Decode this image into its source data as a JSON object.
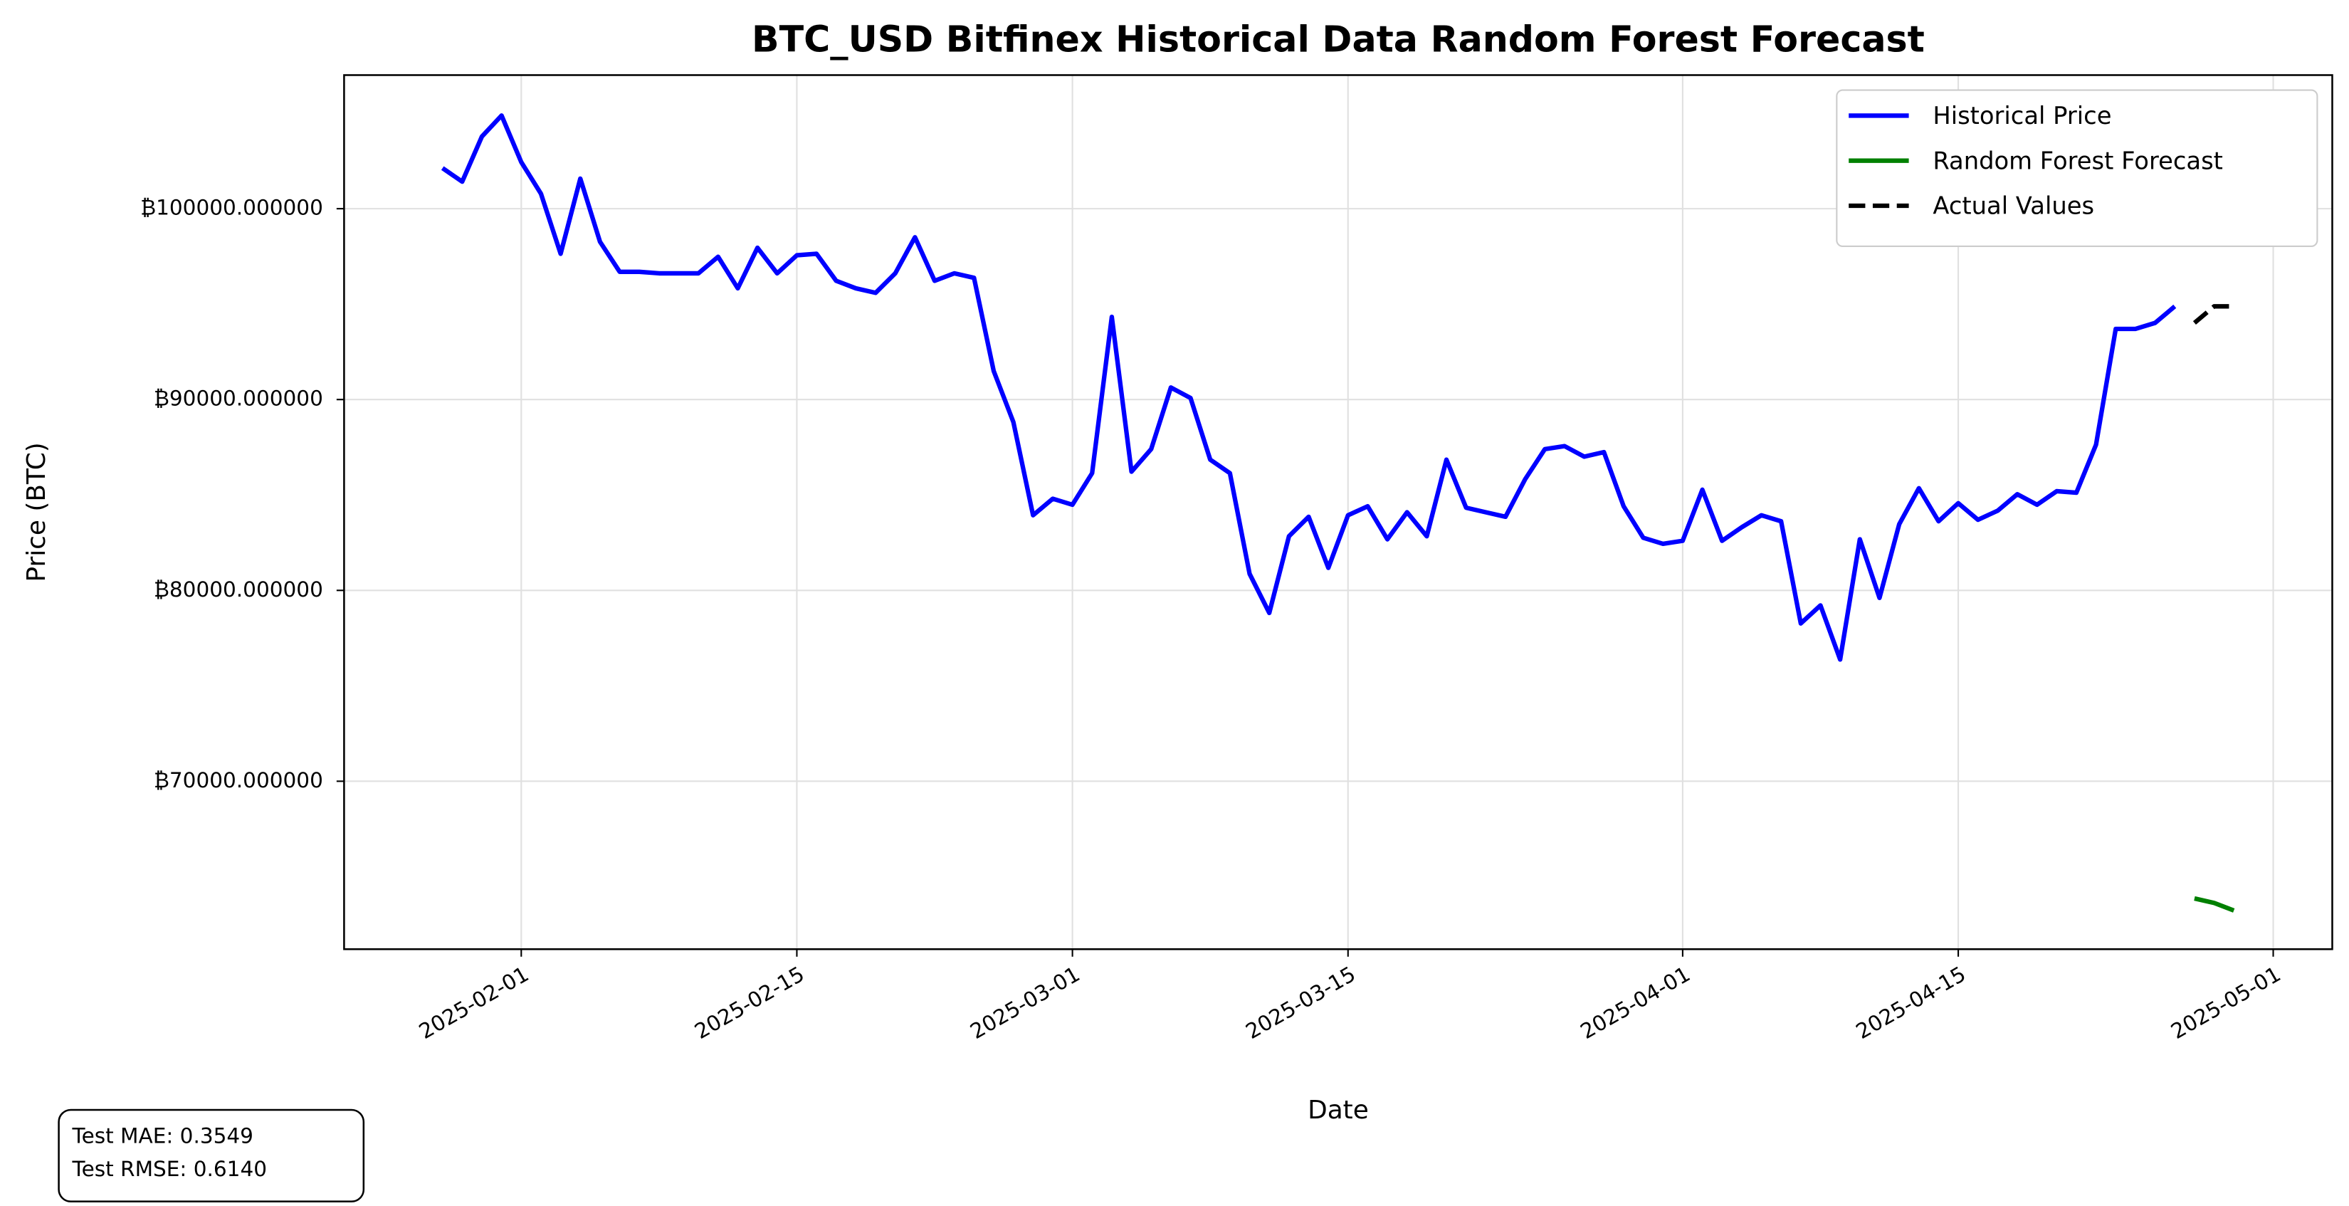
{
  "chart_data": {
    "type": "line",
    "title": "BTC_USD Bitfinex Historical Data Random Forest Forecast",
    "x_label": "Date",
    "y_label": "Price (BTC)",
    "xlim": [
      "2025-01-23",
      "2025-05-04"
    ],
    "xticks": [
      "2025-02-01",
      "2025-02-15",
      "2025-03-01",
      "2025-03-15",
      "2025-04-01",
      "2025-04-15",
      "2025-05-01"
    ],
    "ylim": [
      61200,
      107000
    ],
    "yticks": [
      {
        "value": 70000,
        "label": "₿70000.000000"
      },
      {
        "value": 80000,
        "label": "₿80000.000000"
      },
      {
        "value": 90000,
        "label": "₿90000.000000"
      },
      {
        "value": 100000,
        "label": "₿100000.000000"
      }
    ],
    "grid": true,
    "legend": "upper right",
    "series": [
      {
        "name": "Historical Price",
        "color": "#0000ff",
        "style": "solid",
        "x": [
          "2025-01-28",
          "2025-01-29",
          "2025-01-30",
          "2025-01-31",
          "2025-02-01",
          "2025-02-02",
          "2025-02-03",
          "2025-02-04",
          "2025-02-05",
          "2025-02-06",
          "2025-02-07",
          "2025-02-08",
          "2025-02-09",
          "2025-02-10",
          "2025-02-11",
          "2025-02-12",
          "2025-02-13",
          "2025-02-14",
          "2025-02-15",
          "2025-02-16",
          "2025-02-17",
          "2025-02-18",
          "2025-02-19",
          "2025-02-20",
          "2025-02-21",
          "2025-02-22",
          "2025-02-23",
          "2025-02-24",
          "2025-02-25",
          "2025-02-26",
          "2025-02-27",
          "2025-02-28",
          "2025-03-01",
          "2025-03-02",
          "2025-03-03",
          "2025-03-04",
          "2025-03-05",
          "2025-03-06",
          "2025-03-07",
          "2025-03-08",
          "2025-03-09",
          "2025-03-10",
          "2025-03-11",
          "2025-03-12",
          "2025-03-13",
          "2025-03-14",
          "2025-03-15",
          "2025-03-16",
          "2025-03-17",
          "2025-03-18",
          "2025-03-19",
          "2025-03-20",
          "2025-03-21",
          "2025-03-22",
          "2025-03-23",
          "2025-03-24",
          "2025-03-25",
          "2025-03-26",
          "2025-03-27",
          "2025-03-28",
          "2025-03-29",
          "2025-03-30",
          "2025-03-31",
          "2025-04-01",
          "2025-04-02",
          "2025-04-03",
          "2025-04-04",
          "2025-04-05",
          "2025-04-06",
          "2025-04-07",
          "2025-04-08",
          "2025-04-09",
          "2025-04-10",
          "2025-04-11",
          "2025-04-12",
          "2025-04-13",
          "2025-04-14",
          "2025-04-15",
          "2025-04-16",
          "2025-04-17",
          "2025-04-18",
          "2025-04-19",
          "2025-04-20",
          "2025-04-21",
          "2025-04-22",
          "2025-04-23",
          "2025-04-24",
          "2025-04-25",
          "2025-04-26"
        ],
        "values": [
          102126,
          101417,
          103780,
          104882,
          102441,
          100787,
          97638,
          101575,
          98268,
          96693,
          96693,
          96614,
          96614,
          96614,
          97480,
          95827,
          97953,
          96614,
          97559,
          97638,
          96220,
          95827,
          95591,
          96614,
          98504,
          96220,
          96614,
          96378,
          91496,
          88819,
          83937,
          84803,
          84488,
          86142,
          94331,
          86220,
          87402,
          90630,
          90079,
          86850,
          86142,
          80866,
          78819,
          82835,
          83858,
          81181,
          83937,
          84409,
          82677,
          84094,
          82835,
          86850,
          84331,
          84094,
          83858,
          85827,
          87402,
          87559,
          87008,
          87244,
          84409,
          82756,
          82441,
          82598,
          85276,
          82598,
          83307,
          83937,
          83622,
          78268,
          79213,
          76378,
          82677,
          79606,
          83465,
          85354,
          83622,
          84567,
          83701,
          84173,
          85039,
          84488,
          85197,
          85118,
          87638,
          93701,
          93701,
          94016,
          94882
        ]
      },
      {
        "name": "Random Forest Forecast",
        "color": "#008000",
        "style": "solid",
        "x": [
          "2025-04-27",
          "2025-04-28",
          "2025-04-29"
        ],
        "values": [
          63858,
          63622,
          63228
        ]
      },
      {
        "name": "Actual Values",
        "color": "#000000",
        "style": "dashed",
        "x": [
          "2025-04-27",
          "2025-04-28",
          "2025-04-29"
        ],
        "values": [
          94016,
          94882,
          94882
        ]
      }
    ]
  },
  "metrics": {
    "mae": "Test MAE: 0.3549",
    "rmse": "Test RMSE: 0.6140"
  }
}
